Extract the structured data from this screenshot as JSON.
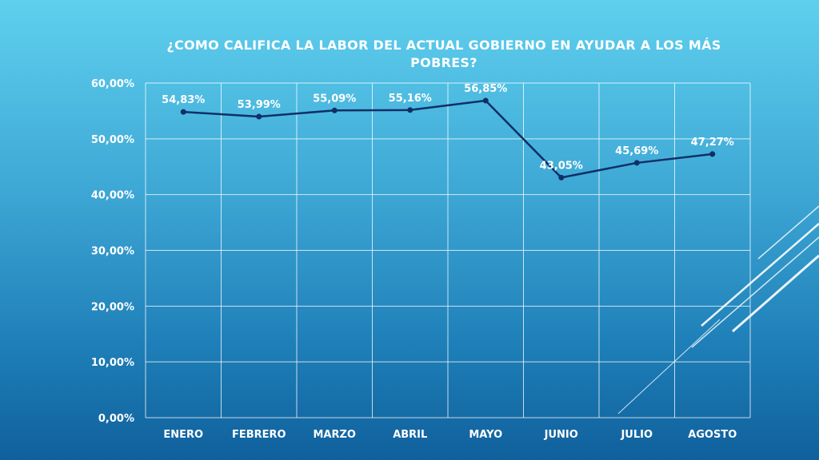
{
  "chart_data": {
    "type": "line",
    "title": "¿COMO CALIFICA LA LABOR DEL ACTUAL GOBIERNO EN AYUDAR A LOS MÁS POBRES?",
    "categories": [
      "ENERO",
      "FEBRERO",
      "MARZO",
      "ABRIL",
      "MAYO",
      "JUNIO",
      "JULIO",
      "AGOSTO"
    ],
    "series": [
      {
        "values": [
          54.83,
          53.99,
          55.09,
          55.16,
          56.85,
          43.05,
          45.69,
          47.27
        ],
        "data_labels": [
          "54,83%",
          "53,99%",
          "55,09%",
          "55,16%",
          "56,85%",
          "43,05%",
          "45,69%",
          "47,27%"
        ]
      }
    ],
    "yticks": [
      0,
      10,
      20,
      30,
      40,
      50,
      60
    ],
    "ytick_labels": [
      "0,00%",
      "10,00%",
      "20,00%",
      "30,00%",
      "40,00%",
      "50,00%",
      "60,00%"
    ],
    "ylim": [
      0,
      60
    ],
    "grid": true,
    "legend": "none",
    "line_color": "#0f2f66",
    "grid_color": "#ffffff"
  }
}
